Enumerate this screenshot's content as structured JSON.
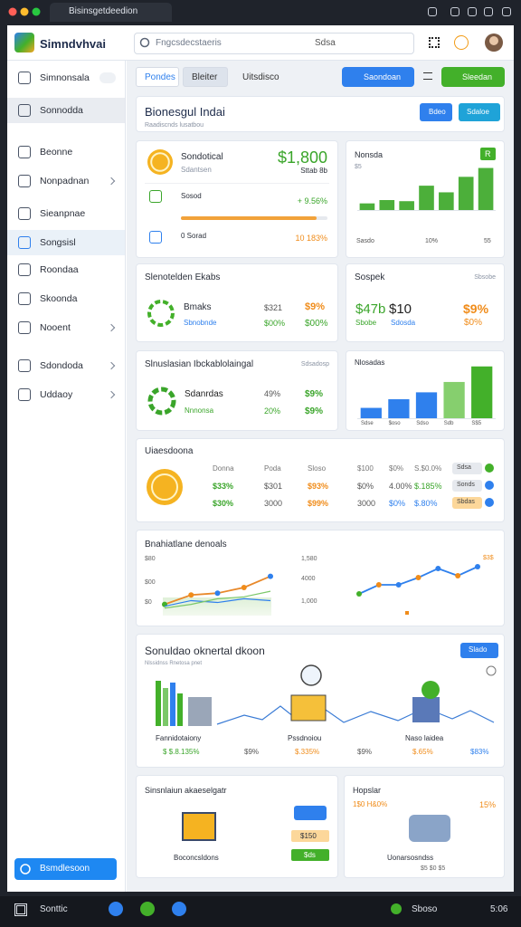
{
  "browser": {
    "tab_title": "Bisinsgetdeedion"
  },
  "header": {
    "logo": "Simndvhvai",
    "search": "Fngcsdecstaeris",
    "search_button": "Sdsa"
  },
  "sidebar": {
    "items": [
      "Simnonsala",
      "Sonnodda",
      "Beonne",
      "Nonpadnan",
      "Sieanpnae",
      "Songsisl",
      "Roondaa",
      "Skoonda",
      "Nooent",
      "Sdondoda",
      "Uddaoy"
    ],
    "active": [
      1,
      5
    ],
    "expandable": [
      3,
      8,
      9,
      10
    ],
    "footer_button": "Bsmdlesoon"
  },
  "toolbar": {
    "tabs": [
      "Pondes",
      "Bleiter",
      "Uitsdisco"
    ],
    "actions": [
      "Saondoan",
      "Sleedan"
    ]
  },
  "overview": {
    "title": "Bionesgul Indai",
    "subtitle": "Raadiscnds lusatbou",
    "buttons": [
      "Bdeo",
      "Sdaloe"
    ]
  },
  "summary": {
    "label": "Sondotical",
    "sublabel": "Sdantsen",
    "amount": "$1,800",
    "amount_note": "Sttab 8b",
    "rows": [
      {
        "label": "Sosod",
        "value": "+ 9.56%"
      },
      {
        "label": "0 Sorad",
        "value": "10 183%"
      }
    ]
  },
  "trend": {
    "title": "Nonsda",
    "badge": "R",
    "note": "$5",
    "bars": [
      6,
      9,
      8,
      22,
      16,
      30,
      38
    ],
    "ylim": [
      0,
      45
    ],
    "color": "#4caf3a",
    "axis_labels": [
      "Sasdo",
      "10%",
      "55"
    ]
  },
  "stack": {
    "title": "Slenotelden Ekabs",
    "label": "Bmaks",
    "sublabel": "Sbnobnde",
    "cells": [
      "$321",
      "$9%",
      "$00%",
      "$00%"
    ]
  },
  "speak": {
    "title": "Sospek",
    "note": "Sbsobe",
    "big": "$47b",
    "amount": "$10",
    "change": "$9%",
    "sub": [
      "Sbobe",
      "Sdosda",
      "$0%"
    ]
  },
  "simulation": {
    "title": "Slnuslasian Ibckablolaingal",
    "note": "Sdsadosp",
    "rows": [
      [
        "Sdanrdas",
        "49%",
        "$9%"
      ],
      [
        "Nnnonsa",
        "20%",
        "$9%"
      ]
    ]
  },
  "distribution": {
    "title": "Nlosadas",
    "categories": [
      "Sdse",
      "$oso",
      "Sdso",
      "Sdb",
      "S$5"
    ],
    "bars": [
      12,
      22,
      30,
      42,
      60
    ],
    "ylim": [
      0,
      65
    ],
    "colors": [
      "#2f80ed",
      "#2f80ed",
      "#2f80ed",
      "#86cf6e",
      "#43b02a"
    ]
  },
  "table": {
    "title": "Uiaesdoona",
    "rows": [
      [
        "Donna",
        "Poda",
        "Sloso",
        "$100",
        "$0%",
        "S.$0.0%",
        "Sdsa"
      ],
      [
        "$33%",
        "$301",
        "$93%",
        "$0%",
        "4.00%",
        "$.185%",
        "Sonds"
      ],
      [
        "$30%",
        "3000",
        "$99%",
        "3000",
        "$0%",
        "$.80%",
        "Sbdas"
      ]
    ]
  },
  "lines": {
    "title": "Bnahiatlane denoals",
    "left": {
      "axis_labels": [
        "$80",
        "$00",
        "$0"
      ],
      "ylim": [
        0,
        30
      ],
      "series": [
        {
          "color": "#e8892b",
          "dots": true,
          "values": [
            6,
            11,
            12,
            15,
            21
          ]
        },
        {
          "color": "#2f80ed",
          "dots": false,
          "values": [
            5,
            8,
            7,
            9,
            8
          ]
        },
        {
          "color": "#7cc86a",
          "dots": false,
          "values": [
            4,
            6,
            9,
            10,
            13
          ]
        }
      ]
    },
    "right": {
      "axis_labels": [
        "1,580",
        "4000",
        "1,000"
      ],
      "ylim": [
        0,
        30
      ],
      "series": [
        {
          "color": "#2f80ed",
          "dots": true,
          "values": [
            8,
            13,
            13,
            17,
            22,
            18,
            23
          ]
        }
      ]
    },
    "right_note": "$3$"
  },
  "operations": {
    "title": "Sonuldao oknertal dkoon",
    "subtitle": "Nlssidnss Rnetosa pnet",
    "button": "Slado",
    "metrics": [
      {
        "label": "Fannidotaiony",
        "value": "$ $.8.135%",
        "change": "$9%"
      },
      {
        "label": "Pssdnoiou",
        "value": "$.335%",
        "change": "$9%"
      },
      {
        "label": "Naso laidea",
        "value": "$.65%",
        "change": "$83%"
      }
    ]
  },
  "bottom_left": {
    "title": "Sinsnlaiun akaeselgatr",
    "pills": [
      "$150",
      "$ds"
    ],
    "label": "Boconcsldons"
  },
  "bottom_right": {
    "title": "Hopslar",
    "note": "1$0 H&0%",
    "change": "15%",
    "label": "Uonarsosndss",
    "footer": "$5 $0 $5"
  },
  "taskbar": {
    "left": "Sonttic",
    "right": "Sboso",
    "clock": "5:06"
  }
}
